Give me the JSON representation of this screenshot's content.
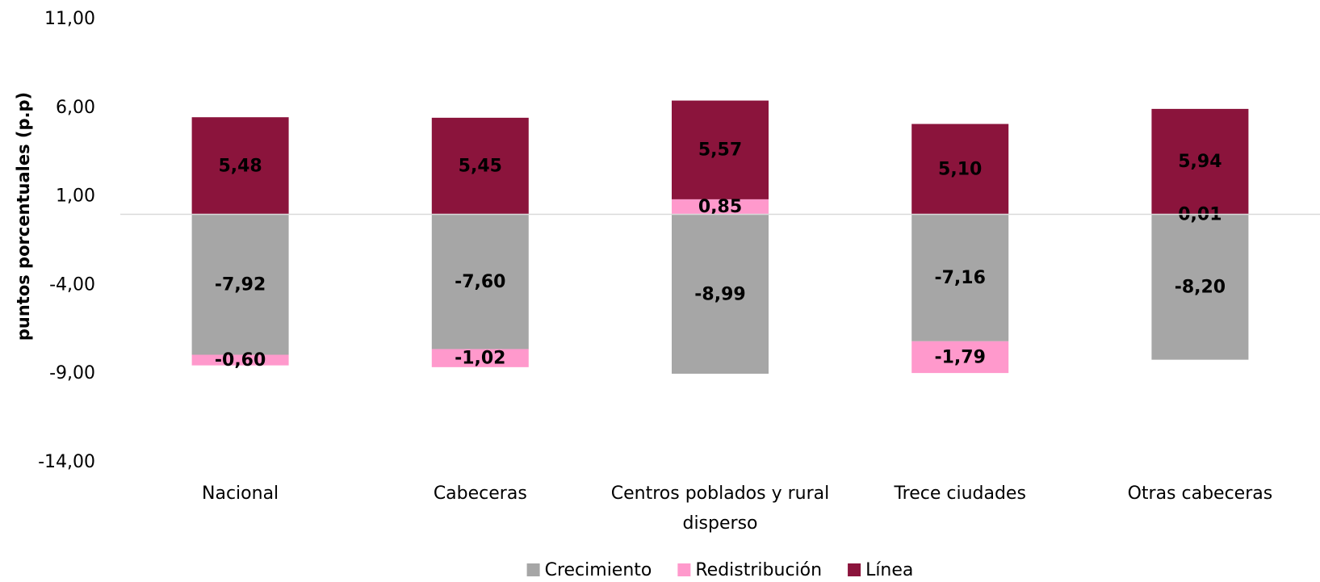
{
  "chart_data": {
    "type": "stacked_bar",
    "y_label": "puntos porcentuales (p.p)",
    "categories": [
      "Nacional",
      "Cabeceras",
      "Centros poblados y rural disperso",
      "Trece ciudades",
      "Otras cabeceras"
    ],
    "series": [
      {
        "name": "Crecimiento",
        "color": "#a6a6a6",
        "label_color": "#ffffff",
        "values": [
          -7.92,
          -7.6,
          -8.99,
          -7.16,
          -8.2
        ],
        "value_labels": [
          "-7,92",
          "-7,60",
          "-8,99",
          "-7,16",
          "-8,20"
        ]
      },
      {
        "name": "Redistribución",
        "color": "#ff99cc",
        "label_color": "#000000",
        "values": [
          -0.6,
          -1.02,
          0.85,
          -1.79,
          0.01
        ],
        "value_labels": [
          "-0,60",
          "-1,02",
          "0,85",
          "-1,79",
          "0,01"
        ]
      },
      {
        "name": "Línea",
        "color": "#8b143c",
        "label_color": "#ffffff",
        "values": [
          5.48,
          5.45,
          5.57,
          5.1,
          5.94
        ],
        "value_labels": [
          "5,48",
          "5,45",
          "5,57",
          "5,10",
          "5,94"
        ]
      }
    ],
    "ylim": [
      -14,
      11
    ],
    "yticks": [
      {
        "value": -14,
        "label": "-14,00"
      },
      {
        "value": -9,
        "label": "-9,00"
      },
      {
        "value": -4,
        "label": "-4,00"
      },
      {
        "value": 1,
        "label": "1,00"
      },
      {
        "value": 6,
        "label": "6,00"
      },
      {
        "value": 11,
        "label": "11,00"
      }
    ],
    "grid": false,
    "legend": "bottom"
  }
}
